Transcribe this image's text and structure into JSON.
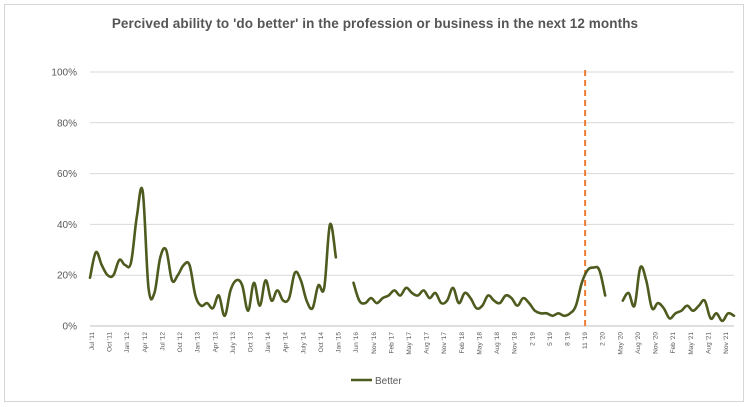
{
  "chart_data": {
    "type": "line",
    "title": "Percived ability to 'do better' in the profession or business in the next 12 months",
    "xlabel": "",
    "ylabel": "",
    "ylim": [
      0,
      100
    ],
    "yticks": [
      "0%",
      "20%",
      "40%",
      "60%",
      "80%",
      "100%"
    ],
    "xtick_labels": [
      "Jul '11",
      "Oct '11",
      "Jan '12",
      "Apr '12",
      "Jul '12",
      "Oct '12",
      "Jan '13",
      "Apr '13",
      "July '13",
      "Oct '13",
      "Jan '14",
      "Apr '14",
      "July '14",
      "Oct '14",
      "Jan '15",
      "Jun '16",
      "Nov '16",
      "Feb '17",
      "May '17",
      "Aug '17",
      "Nov '17",
      "Feb '18",
      "May '18",
      "Aug '18",
      "Nov '18",
      "2 '19",
      "5 '19",
      "8 '19",
      "11 '19",
      "2 '20",
      "May '20",
      "Aug '20",
      "Nov '20",
      "Feb '21",
      "May '21",
      "Aug '21",
      "Nov '21"
    ],
    "reference_line": {
      "label": "11 '19",
      "color": "#ED7D31",
      "style": "dashed"
    },
    "legend": {
      "position": "bottom",
      "entries": [
        "Better"
      ]
    },
    "series": [
      {
        "name": "Better",
        "color": "#4E5B1F",
        "segments": [
          [
            [
              0,
              19
            ],
            [
              1,
              29
            ],
            [
              2,
              24
            ],
            [
              3,
              20
            ],
            [
              4,
              20
            ],
            [
              5,
              26
            ],
            [
              6,
              24
            ],
            [
              7,
              25
            ],
            [
              8,
              43
            ],
            [
              9,
              53
            ],
            [
              10,
              15
            ],
            [
              11,
              13
            ],
            [
              12,
              27
            ],
            [
              13,
              30
            ],
            [
              14,
              18
            ],
            [
              15,
              20
            ],
            [
              16,
              24
            ],
            [
              17,
              24
            ],
            [
              18,
              12
            ],
            [
              19,
              8
            ],
            [
              20,
              9
            ],
            [
              21,
              7
            ],
            [
              22,
              12
            ],
            [
              23,
              4
            ],
            [
              24,
              14
            ],
            [
              25,
              18
            ],
            [
              26,
              16
            ],
            [
              27,
              6
            ],
            [
              28,
              17
            ],
            [
              29,
              8
            ],
            [
              30,
              18
            ],
            [
              31,
              10
            ],
            [
              32,
              14
            ],
            [
              33,
              10
            ],
            [
              34,
              11
            ],
            [
              35,
              21
            ],
            [
              36,
              18
            ],
            [
              37,
              10
            ],
            [
              38,
              7
            ],
            [
              39,
              16
            ],
            [
              40,
              15
            ],
            [
              41,
              40
            ],
            [
              42,
              27
            ]
          ],
          [
            [
              45,
              17
            ],
            [
              46,
              10
            ],
            [
              47,
              9
            ],
            [
              48,
              11
            ],
            [
              49,
              9
            ],
            [
              50,
              11
            ],
            [
              51,
              12
            ],
            [
              52,
              14
            ],
            [
              53,
              12
            ],
            [
              54,
              15
            ],
            [
              55,
              13
            ],
            [
              56,
              12
            ],
            [
              57,
              14
            ],
            [
              58,
              11
            ],
            [
              59,
              13
            ],
            [
              60,
              9
            ],
            [
              61,
              10
            ],
            [
              62,
              15
            ],
            [
              63,
              9
            ],
            [
              64,
              13
            ],
            [
              65,
              11
            ],
            [
              66,
              7
            ],
            [
              67,
              8
            ],
            [
              68,
              12
            ],
            [
              69,
              10
            ],
            [
              70,
              9
            ],
            [
              71,
              12
            ],
            [
              72,
              11
            ],
            [
              73,
              8
            ],
            [
              74,
              11
            ],
            [
              75,
              9
            ],
            [
              76,
              6
            ],
            [
              77,
              5
            ],
            [
              78,
              5
            ],
            [
              79,
              4
            ],
            [
              80,
              5
            ],
            [
              81,
              4
            ],
            [
              82,
              5
            ],
            [
              83,
              8
            ],
            [
              84,
              17
            ],
            [
              85,
              22
            ],
            [
              86,
              23
            ],
            [
              87,
              22
            ],
            [
              88,
              12
            ]
          ],
          [
            [
              91,
              10
            ],
            [
              92,
              13
            ],
            [
              93,
              8
            ],
            [
              94,
              23
            ],
            [
              95,
              18
            ],
            [
              96,
              7
            ],
            [
              97,
              9
            ],
            [
              98,
              7
            ],
            [
              99,
              3
            ],
            [
              100,
              5
            ],
            [
              101,
              6
            ],
            [
              102,
              8
            ],
            [
              103,
              6
            ],
            [
              104,
              8
            ],
            [
              105,
              10
            ],
            [
              106,
              3
            ],
            [
              107,
              5
            ],
            [
              108,
              2
            ],
            [
              109,
              5
            ],
            [
              110,
              4
            ]
          ]
        ]
      }
    ]
  }
}
